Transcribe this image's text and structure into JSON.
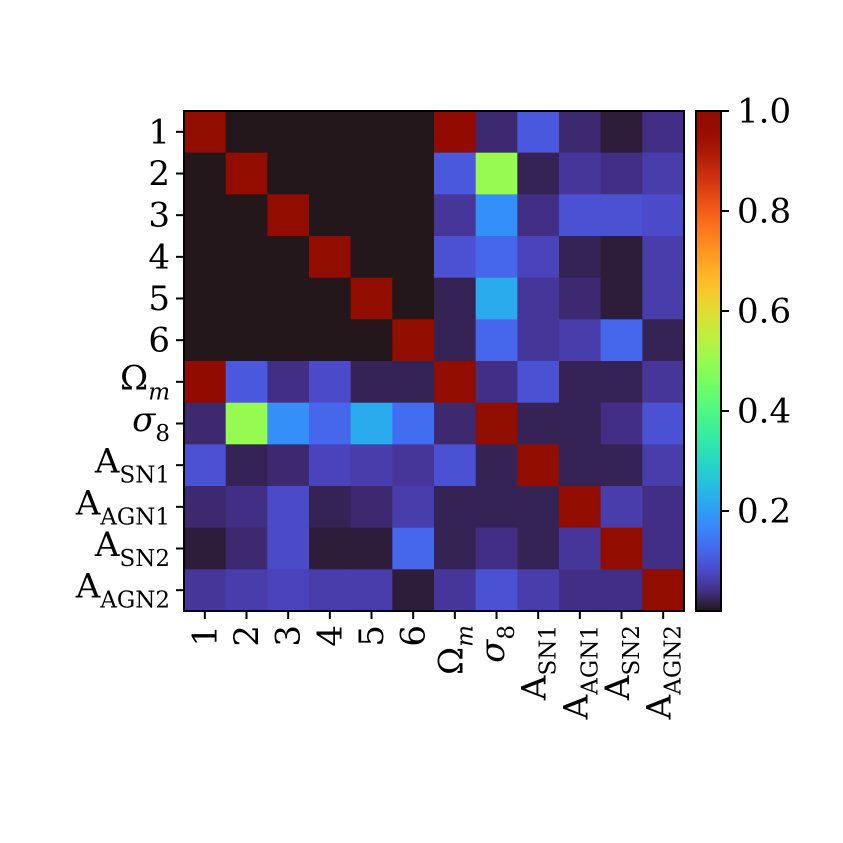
{
  "chart_data": {
    "type": "heatmap",
    "labels": [
      {
        "base": "1",
        "sub": "",
        "italic": false
      },
      {
        "base": "2",
        "sub": "",
        "italic": false
      },
      {
        "base": "3",
        "sub": "",
        "italic": false
      },
      {
        "base": "4",
        "sub": "",
        "italic": false
      },
      {
        "base": "5",
        "sub": "",
        "italic": false
      },
      {
        "base": "6",
        "sub": "",
        "italic": false
      },
      {
        "base": "Ω",
        "sub": "m",
        "italic": false
      },
      {
        "base": "σ",
        "sub": "8",
        "italic": true
      },
      {
        "base": "A",
        "sub": "SN1",
        "italic": false
      },
      {
        "base": "A",
        "sub": "AGN1",
        "italic": false
      },
      {
        "base": "A",
        "sub": "SN2",
        "italic": false
      },
      {
        "base": "A",
        "sub": "AGN2",
        "italic": false
      }
    ],
    "matrix": [
      [
        1.0,
        0.0,
        0.0,
        0.0,
        0.0,
        0.0,
        0.98,
        0.03,
        0.1,
        0.03,
        0.01,
        0.04
      ],
      [
        0.0,
        1.0,
        0.0,
        0.0,
        0.0,
        0.0,
        0.1,
        0.5,
        0.02,
        0.05,
        0.04,
        0.06
      ],
      [
        0.0,
        0.0,
        1.0,
        0.0,
        0.0,
        0.0,
        0.05,
        0.18,
        0.04,
        0.09,
        0.09,
        0.08
      ],
      [
        0.0,
        0.0,
        0.0,
        1.0,
        0.0,
        0.0,
        0.09,
        0.12,
        0.07,
        0.02,
        0.01,
        0.06
      ],
      [
        0.0,
        0.0,
        0.0,
        0.0,
        1.0,
        0.0,
        0.02,
        0.22,
        0.05,
        0.03,
        0.01,
        0.06
      ],
      [
        0.0,
        0.0,
        0.0,
        0.0,
        0.0,
        1.0,
        0.02,
        0.12,
        0.05,
        0.06,
        0.12,
        0.02
      ],
      [
        0.98,
        0.1,
        0.04,
        0.08,
        0.02,
        0.02,
        1.0,
        0.04,
        0.09,
        0.02,
        0.02,
        0.05
      ],
      [
        0.03,
        0.5,
        0.18,
        0.12,
        0.22,
        0.13,
        0.03,
        1.0,
        0.02,
        0.02,
        0.04,
        0.09
      ],
      [
        0.09,
        0.02,
        0.03,
        0.07,
        0.06,
        0.05,
        0.09,
        0.02,
        1.0,
        0.02,
        0.02,
        0.06
      ],
      [
        0.03,
        0.04,
        0.08,
        0.02,
        0.03,
        0.06,
        0.02,
        0.02,
        0.02,
        1.0,
        0.06,
        0.04
      ],
      [
        0.01,
        0.03,
        0.08,
        0.01,
        0.01,
        0.12,
        0.02,
        0.04,
        0.02,
        0.05,
        1.0,
        0.04
      ],
      [
        0.05,
        0.06,
        0.07,
        0.06,
        0.06,
        0.01,
        0.05,
        0.09,
        0.06,
        0.04,
        0.04,
        1.0
      ]
    ],
    "colorbar": {
      "vmin": 0.0,
      "vmax": 1.0,
      "ticks": [
        0.2,
        0.4,
        0.6,
        0.8,
        1.0
      ],
      "tick_labels": [
        "0.2",
        "0.4",
        "0.6",
        "0.8",
        "1.0"
      ]
    },
    "colormap": "turbo",
    "title": "",
    "xlabel": "",
    "ylabel": ""
  }
}
